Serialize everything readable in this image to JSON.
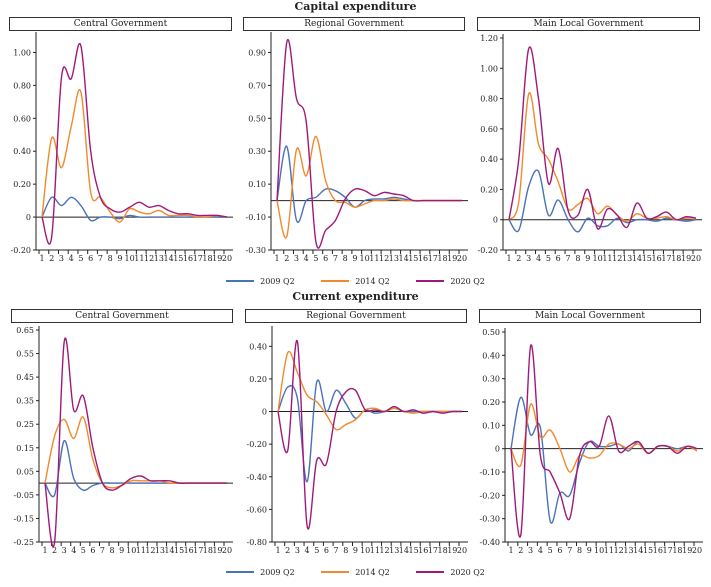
{
  "colors": {
    "2009 Q2": "#4a72b8",
    "2014 Q2": "#f08a2c",
    "2020 Q2": "#a0197a"
  },
  "legend": [
    "2009 Q2",
    "2014 Q2",
    "2020 Q2"
  ],
  "sections": [
    {
      "title": "Capital expenditure"
    },
    {
      "title": "Current expenditure"
    }
  ],
  "chart_data": [
    {
      "type": "line",
      "section": "Capital expenditure",
      "title": "Central Government",
      "x": [
        1,
        2,
        3,
        4,
        5,
        6,
        7,
        8,
        9,
        10,
        11,
        12,
        13,
        14,
        15,
        16,
        17,
        18,
        19,
        20
      ],
      "ylim": [
        -0.2,
        1.1
      ],
      "yticks": [
        -0.2,
        0,
        0.2,
        0.4,
        0.6,
        0.8,
        1.0
      ],
      "ytick_labels": [
        "-0.20",
        "0",
        "0.20",
        "0.40",
        "0.60",
        "0.80",
        "1.00"
      ],
      "series": [
        {
          "name": "2009 Q2",
          "values": [
            0,
            0.12,
            0.07,
            0.12,
            0.07,
            -0.02,
            0,
            0,
            -0.01,
            0.01,
            0,
            0,
            0,
            0,
            0,
            0,
            0,
            0,
            0,
            0
          ]
        },
        {
          "name": "2014 Q2",
          "values": [
            0,
            0.48,
            0.3,
            0.55,
            0.76,
            0.15,
            0.12,
            0.03,
            -0.03,
            0.05,
            0.03,
            0.02,
            0.04,
            0.01,
            0.01,
            0.01,
            0,
            0,
            0.01,
            0
          ]
        },
        {
          "name": "2020 Q2",
          "values": [
            0,
            -0.12,
            0.85,
            0.84,
            1.04,
            0.4,
            0.12,
            0.05,
            0.03,
            0.06,
            0.09,
            0.06,
            0.07,
            0.04,
            0.02,
            0.02,
            0.01,
            0.01,
            0.01,
            0
          ]
        }
      ]
    },
    {
      "type": "line",
      "section": "Capital expenditure",
      "title": "Regional Government",
      "x": [
        1,
        2,
        3,
        4,
        5,
        6,
        7,
        8,
        9,
        10,
        11,
        12,
        13,
        14,
        15,
        16,
        17,
        18,
        19,
        20
      ],
      "ylim": [
        -0.3,
        1.0
      ],
      "yticks": [
        -0.3,
        -0.1,
        0.1,
        0.3,
        0.5,
        0.7,
        0.9
      ],
      "ytick_labels": [
        "-0.30",
        "-0.10",
        "0.10",
        "0.30",
        "0.50",
        "0.70",
        "0.90"
      ],
      "series": [
        {
          "name": "2009 Q2",
          "values": [
            0,
            0.33,
            -0.12,
            0.0,
            0.02,
            0.07,
            0.06,
            0.02,
            -0.04,
            0,
            0.01,
            0.01,
            0.02,
            0.01,
            0,
            0,
            0,
            0,
            0,
            0
          ]
        },
        {
          "name": "2014 Q2",
          "values": [
            0,
            -0.22,
            0.31,
            0.15,
            0.39,
            0.12,
            0.0,
            -0.01,
            -0.04,
            -0.02,
            0,
            0,
            0.01,
            0,
            0,
            0,
            0,
            0,
            0,
            0
          ]
        },
        {
          "name": "2020 Q2",
          "values": [
            0,
            0.96,
            0.62,
            0.48,
            -0.25,
            -0.18,
            -0.12,
            0.01,
            0.07,
            0.06,
            0.03,
            0.05,
            0.04,
            0.03,
            0,
            0,
            0,
            0,
            0,
            0
          ]
        }
      ]
    },
    {
      "type": "line",
      "section": "Capital expenditure",
      "title": "Main Local Government",
      "x": [
        1,
        2,
        3,
        4,
        5,
        6,
        7,
        8,
        9,
        10,
        11,
        12,
        13,
        14,
        15,
        16,
        17,
        18,
        19,
        20
      ],
      "ylim": [
        -0.2,
        1.2
      ],
      "yticks": [
        -0.2,
        0,
        0.2,
        0.4,
        0.6,
        0.8,
        1.0,
        1.2
      ],
      "ytick_labels": [
        "-0.20",
        "0",
        "0.20",
        "0.40",
        "0.60",
        "0.80",
        "1.00",
        "1.20"
      ],
      "series": [
        {
          "name": "2009 Q2",
          "values": [
            0,
            -0.07,
            0.22,
            0.32,
            0.03,
            0.13,
            0.0,
            -0.08,
            0.01,
            -0.04,
            -0.04,
            0.01,
            -0.02,
            0,
            0,
            -0.01,
            0.01,
            0,
            -0.01,
            0
          ]
        },
        {
          "name": "2014 Q2",
          "values": [
            0,
            0.12,
            0.83,
            0.5,
            0.4,
            0.25,
            0.07,
            0.1,
            0.14,
            0.04,
            0.09,
            0.03,
            -0.01,
            0.04,
            0.01,
            0.01,
            0.02,
            0,
            0.01,
            0.01
          ]
        },
        {
          "name": "2020 Q2",
          "values": [
            0,
            0.4,
            1.13,
            0.8,
            0.24,
            0.47,
            0.06,
            0.03,
            0.2,
            -0.06,
            0.07,
            0.03,
            -0.05,
            0.11,
            0.01,
            0.02,
            0.05,
            0,
            0.02,
            0.01
          ]
        }
      ]
    },
    {
      "type": "line",
      "section": "Current expenditure",
      "title": "Central Government",
      "x": [
        1,
        2,
        3,
        4,
        5,
        6,
        7,
        8,
        9,
        10,
        11,
        12,
        13,
        14,
        15,
        16,
        17,
        18,
        19,
        20
      ],
      "ylim": [
        -0.25,
        0.65
      ],
      "yticks": [
        -0.25,
        -0.15,
        -0.05,
        0.05,
        0.15,
        0.25,
        0.35,
        0.45,
        0.55,
        0.65
      ],
      "ytick_labels": [
        "-0.25",
        "-0.15",
        "-0.05",
        "0.05",
        "0.15",
        "0.25",
        "0.35",
        "0.45",
        "0.55",
        "0.65"
      ],
      "series": [
        {
          "name": "2009 Q2",
          "values": [
            0,
            -0.05,
            0.18,
            0.02,
            -0.03,
            -0.01,
            0,
            0,
            0,
            0,
            0,
            0,
            0,
            0,
            0,
            0,
            0,
            0,
            0,
            0
          ]
        },
        {
          "name": "2014 Q2",
          "values": [
            0,
            0.2,
            0.27,
            0.19,
            0.28,
            0.1,
            0.0,
            -0.02,
            -0.01,
            0.01,
            0.01,
            0.01,
            0.01,
            0,
            0,
            0,
            0,
            0,
            0,
            0
          ]
        },
        {
          "name": "2020 Q2",
          "values": [
            0,
            -0.25,
            0.6,
            0.31,
            0.37,
            0.15,
            0.0,
            -0.03,
            -0.01,
            0.02,
            0.03,
            0.01,
            0.01,
            0.01,
            0,
            0,
            0,
            0,
            0,
            0
          ]
        }
      ]
    },
    {
      "type": "line",
      "section": "Current expenditure",
      "title": "Regional Government",
      "x": [
        1,
        2,
        3,
        4,
        5,
        6,
        7,
        8,
        9,
        10,
        11,
        12,
        13,
        14,
        15,
        16,
        17,
        18,
        19,
        20
      ],
      "ylim": [
        -0.8,
        0.5
      ],
      "yticks": [
        -0.8,
        -0.6,
        -0.4,
        -0.2,
        0,
        0.2,
        0.4
      ],
      "ytick_labels": [
        "-0.80",
        "-0.60",
        "-0.40",
        "-0.20",
        "0",
        "0.20",
        "0.40"
      ],
      "series": [
        {
          "name": "2009 Q2",
          "values": [
            0,
            0.15,
            0.08,
            -0.43,
            0.18,
            0.0,
            0.13,
            0.05,
            -0.04,
            0.01,
            -0.01,
            0,
            0.02,
            0,
            0,
            0,
            0,
            0,
            0,
            0
          ]
        },
        {
          "name": "2014 Q2",
          "values": [
            0,
            0.36,
            0.24,
            0.1,
            0.06,
            -0.02,
            -0.11,
            -0.08,
            -0.05,
            0.01,
            0.02,
            0,
            0.02,
            0,
            -0.01,
            0,
            0,
            0,
            0,
            0
          ]
        },
        {
          "name": "2020 Q2",
          "values": [
            0,
            -0.24,
            0.43,
            -0.7,
            -0.3,
            -0.32,
            0.0,
            0.12,
            0.13,
            0.01,
            0.01,
            0,
            0.03,
            0,
            0.01,
            -0.01,
            0,
            -0.01,
            0,
            0
          ]
        }
      ]
    },
    {
      "type": "line",
      "section": "Current expenditure",
      "title": "Main Local Government",
      "x": [
        1,
        2,
        3,
        4,
        5,
        6,
        7,
        8,
        9,
        10,
        11,
        12,
        13,
        14,
        15,
        16,
        17,
        18,
        19,
        20
      ],
      "ylim": [
        -0.4,
        0.5
      ],
      "yticks": [
        -0.4,
        -0.3,
        -0.2,
        -0.1,
        0,
        0.1,
        0.2,
        0.3,
        0.4,
        0.5
      ],
      "ytick_labels": [
        "-0.40",
        "-0.30",
        "-0.20",
        "-0.10",
        "0",
        "0.10",
        "0.20",
        "0.30",
        "0.40",
        "0.50"
      ],
      "series": [
        {
          "name": "2009 Q2",
          "values": [
            0,
            0.22,
            0.06,
            0.09,
            -0.31,
            -0.19,
            -0.2,
            -0.06,
            0.03,
            0.01,
            0.01,
            0.02,
            -0.01,
            0.03,
            -0.02,
            0.01,
            0.01,
            0,
            0.01,
            0
          ]
        },
        {
          "name": "2014 Q2",
          "values": [
            0,
            -0.07,
            0.19,
            0.05,
            0.08,
            0.0,
            -0.1,
            -0.03,
            -0.04,
            -0.03,
            0.02,
            0.02,
            0,
            0.02,
            -0.02,
            0.01,
            0.01,
            -0.01,
            0.01,
            -0.01
          ]
        },
        {
          "name": "2020 Q2",
          "values": [
            0,
            -0.37,
            0.44,
            -0.03,
            -0.1,
            -0.19,
            -0.3,
            -0.03,
            0.03,
            0.01,
            0.14,
            -0.01,
            0.01,
            0.03,
            -0.02,
            0.01,
            0.01,
            -0.02,
            0.01,
            0
          ]
        }
      ]
    }
  ]
}
